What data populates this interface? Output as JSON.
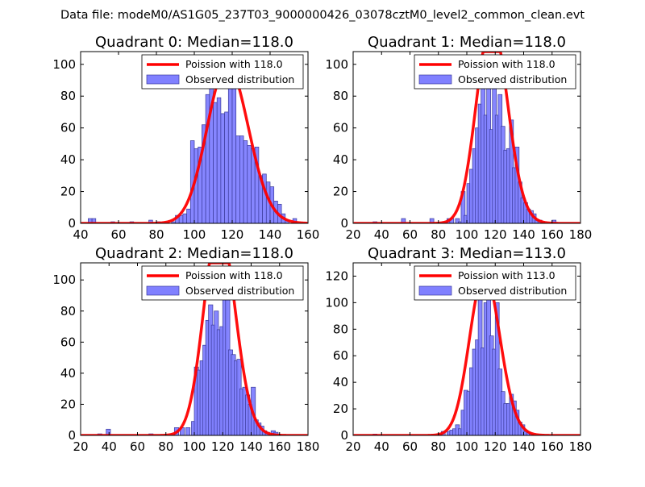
{
  "figure_title": "Data file: modeM0/AS1G05_237T03_9000000426_03078cztM0_level2_common_clean.evt",
  "colors": {
    "poisson_line": "#ff0000",
    "hist_fill": "#8080ff",
    "hist_edge": "#3a3a9a",
    "axes": "#000000"
  },
  "chart_data": [
    {
      "type": "bar",
      "title": "Quadrant 0: Median=118.0",
      "xlim": [
        40,
        160
      ],
      "ylim": [
        0,
        108
      ],
      "xticks": [
        40,
        60,
        80,
        100,
        120,
        140,
        160
      ],
      "yticks": [
        0,
        20,
        40,
        60,
        80,
        100
      ],
      "median": 118.0,
      "legend": {
        "placement": "top-right",
        "line": "Poission with 118.0",
        "hist": "Observed distribution"
      },
      "bin_width": 2,
      "bins": [
        [
          44,
          3
        ],
        [
          46,
          3
        ],
        [
          56,
          1
        ],
        [
          66,
          1
        ],
        [
          76,
          2
        ],
        [
          80,
          1
        ],
        [
          88,
          1
        ],
        [
          90,
          5
        ],
        [
          92,
          5
        ],
        [
          94,
          6
        ],
        [
          96,
          9
        ],
        [
          98,
          52
        ],
        [
          100,
          47
        ],
        [
          102,
          48
        ],
        [
          104,
          62
        ],
        [
          106,
          81
        ],
        [
          108,
          91
        ],
        [
          110,
          76
        ],
        [
          112,
          79
        ],
        [
          114,
          69
        ],
        [
          116,
          70
        ],
        [
          118,
          90
        ],
        [
          120,
          101
        ],
        [
          122,
          55
        ],
        [
          124,
          55
        ],
        [
          126,
          52
        ],
        [
          128,
          49
        ],
        [
          130,
          47
        ],
        [
          132,
          48
        ],
        [
          134,
          30
        ],
        [
          136,
          31
        ],
        [
          138,
          26
        ],
        [
          140,
          23
        ],
        [
          142,
          14
        ],
        [
          144,
          12
        ],
        [
          146,
          6
        ],
        [
          148,
          2
        ],
        [
          152,
          3
        ]
      ]
    },
    {
      "type": "bar",
      "title": "Quadrant 1: Median=118.0",
      "xlim": [
        20,
        180
      ],
      "ylim": [
        0,
        108
      ],
      "xticks": [
        20,
        40,
        60,
        80,
        100,
        120,
        140,
        160,
        180
      ],
      "yticks": [
        0,
        20,
        40,
        60,
        80,
        100
      ],
      "median": 118.0,
      "legend": {
        "placement": "top-right",
        "line": "Poission with 118.0",
        "hist": "Observed distribution"
      },
      "bin_width": 2.8,
      "bins": [
        [
          34,
          1
        ],
        [
          54,
          3
        ],
        [
          74,
          3
        ],
        [
          86,
          3
        ],
        [
          88,
          3
        ],
        [
          92,
          3
        ],
        [
          94,
          1
        ],
        [
          96,
          20
        ],
        [
          98,
          5
        ],
        [
          100,
          25
        ],
        [
          102,
          34
        ],
        [
          104,
          47
        ],
        [
          106,
          60
        ],
        [
          108,
          75
        ],
        [
          110,
          91
        ],
        [
          112,
          68
        ],
        [
          114,
          96
        ],
        [
          116,
          59
        ],
        [
          118,
          101
        ],
        [
          120,
          68
        ],
        [
          122,
          81
        ],
        [
          124,
          61
        ],
        [
          126,
          46
        ],
        [
          128,
          47
        ],
        [
          130,
          65
        ],
        [
          132,
          35
        ],
        [
          134,
          48
        ],
        [
          136,
          26
        ],
        [
          138,
          16
        ],
        [
          140,
          13
        ],
        [
          142,
          9
        ],
        [
          144,
          8
        ],
        [
          146,
          6
        ],
        [
          148,
          2
        ],
        [
          150,
          2
        ],
        [
          152,
          1
        ],
        [
          160,
          2
        ]
      ]
    },
    {
      "type": "bar",
      "title": "Quadrant 2: Median=118.0",
      "xlim": [
        20,
        180
      ],
      "ylim": [
        0,
        111
      ],
      "xticks": [
        20,
        40,
        60,
        80,
        100,
        120,
        140,
        160,
        180
      ],
      "yticks": [
        0,
        20,
        40,
        60,
        80,
        100
      ],
      "median": 118.0,
      "legend": {
        "placement": "top-right",
        "line": "Poission with 118.0",
        "hist": "Observed distribution"
      },
      "bin_width": 3,
      "bins": [
        [
          32,
          1
        ],
        [
          38,
          4
        ],
        [
          68,
          1
        ],
        [
          86,
          5
        ],
        [
          90,
          5
        ],
        [
          94,
          5
        ],
        [
          98,
          9
        ],
        [
          100,
          44
        ],
        [
          102,
          42
        ],
        [
          104,
          48
        ],
        [
          106,
          58
        ],
        [
          108,
          74
        ],
        [
          110,
          84
        ],
        [
          112,
          71
        ],
        [
          114,
          80
        ],
        [
          116,
          68
        ],
        [
          118,
          70
        ],
        [
          120,
          89
        ],
        [
          122,
          103
        ],
        [
          124,
          55
        ],
        [
          126,
          52
        ],
        [
          128,
          48
        ],
        [
          130,
          49
        ],
        [
          132,
          30
        ],
        [
          134,
          31
        ],
        [
          136,
          26
        ],
        [
          138,
          20
        ],
        [
          140,
          31
        ],
        [
          142,
          10
        ],
        [
          144,
          8
        ],
        [
          146,
          6
        ],
        [
          148,
          3
        ],
        [
          150,
          2
        ],
        [
          154,
          3
        ],
        [
          156,
          2
        ]
      ]
    },
    {
      "type": "bar",
      "title": "Quadrant 3: Median=113.0",
      "xlim": [
        20,
        180
      ],
      "ylim": [
        0,
        130
      ],
      "xticks": [
        20,
        40,
        60,
        80,
        100,
        120,
        140,
        160,
        180
      ],
      "yticks": [
        0,
        20,
        40,
        60,
        80,
        100,
        120
      ],
      "median": 113.0,
      "legend": {
        "placement": "top-right",
        "line": "Poission with 113.0",
        "hist": "Observed distribution"
      },
      "bin_width": 2.8,
      "bins": [
        [
          34,
          1
        ],
        [
          80,
          1
        ],
        [
          82,
          3
        ],
        [
          86,
          3
        ],
        [
          88,
          4
        ],
        [
          90,
          5
        ],
        [
          92,
          8
        ],
        [
          94,
          5
        ],
        [
          96,
          19
        ],
        [
          98,
          34
        ],
        [
          100,
          33
        ],
        [
          102,
          51
        ],
        [
          104,
          65
        ],
        [
          106,
          72
        ],
        [
          108,
          110
        ],
        [
          110,
          66
        ],
        [
          112,
          100
        ],
        [
          114,
          113
        ],
        [
          116,
          75
        ],
        [
          118,
          65
        ],
        [
          120,
          100
        ],
        [
          122,
          50
        ],
        [
          124,
          33
        ],
        [
          126,
          24
        ],
        [
          128,
          24
        ],
        [
          130,
          31
        ],
        [
          132,
          26
        ],
        [
          134,
          19
        ],
        [
          136,
          10
        ],
        [
          138,
          8
        ],
        [
          140,
          3
        ],
        [
          142,
          2
        ],
        [
          144,
          1
        ]
      ]
    }
  ]
}
